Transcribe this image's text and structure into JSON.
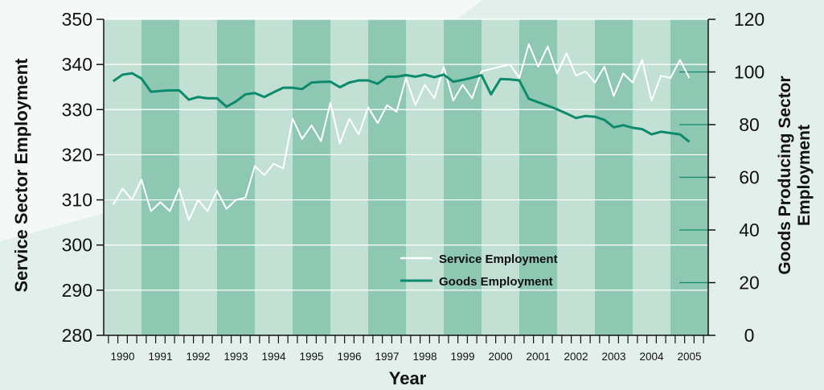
{
  "chart_data": {
    "type": "line",
    "title": "",
    "xlabel": "Year",
    "ylabel_left": "Service Sector Employment",
    "ylabel_right": "Goods Producing Sector Employment",
    "ylim_left": [
      280,
      350
    ],
    "ylim_right": [
      0,
      120
    ],
    "yticks_left": [
      280,
      290,
      300,
      310,
      320,
      330,
      340,
      350
    ],
    "yticks_right": [
      0,
      20,
      40,
      60,
      80,
      100,
      120
    ],
    "xlim": [
      1989.75,
      2005.75
    ],
    "x_tick_labels": [
      "1990",
      "1991",
      "1992",
      "1993",
      "1994",
      "1995",
      "1996",
      "1997",
      "1998",
      "1999",
      "2000",
      "2001",
      "2002",
      "2003",
      "2004",
      "2005"
    ],
    "grid": true,
    "legend_position": "center-right",
    "band_colors": {
      "light": "#c2e0d3",
      "dark": "#8ec8b2"
    },
    "series": [
      {
        "name": "Service Employment",
        "axis": "left",
        "color": "#ffffff",
        "x": [
          1990.0,
          1990.25,
          1990.5,
          1990.75,
          1991.0,
          1991.25,
          1991.5,
          1991.75,
          1992.0,
          1992.25,
          1992.5,
          1992.75,
          1993.0,
          1993.25,
          1993.5,
          1993.75,
          1994.0,
          1994.25,
          1994.5,
          1994.75,
          1995.0,
          1995.25,
          1995.5,
          1995.75,
          1996.0,
          1996.25,
          1996.5,
          1996.75,
          1997.0,
          1997.25,
          1997.5,
          1997.75,
          1998.0,
          1998.25,
          1998.5,
          1998.75,
          1999.0,
          1999.25,
          1999.5,
          1999.75,
          2000.0,
          2000.25,
          2000.5,
          2000.75,
          2001.0,
          2001.25,
          2001.5,
          2001.75,
          2002.0,
          2002.25,
          2002.5,
          2002.75,
          2003.0,
          2003.25,
          2003.5,
          2003.75,
          2004.0,
          2004.25,
          2004.5,
          2004.75,
          2005.0,
          2005.25
        ],
        "values": [
          309,
          312.5,
          310,
          314.5,
          307.5,
          309.5,
          307.5,
          312.5,
          305.5,
          310,
          307.5,
          312,
          308,
          310,
          310.5,
          317.5,
          315.5,
          318,
          317,
          328,
          323.5,
          326.5,
          323,
          331.5,
          322.5,
          328,
          324.5,
          330.5,
          327,
          331,
          329.5,
          337,
          331,
          335.5,
          332.5,
          339.5,
          332,
          335.5,
          332.5,
          338.5,
          339,
          339.5,
          340,
          337,
          344.5,
          339.5,
          344,
          338,
          342.5,
          337.5,
          338.5,
          336,
          339.5,
          333,
          338,
          336,
          341,
          332,
          337.5,
          337,
          341,
          337
        ]
      },
      {
        "name": "Goods Employment",
        "axis": "right",
        "color": "#0c8a6c",
        "x": [
          1990.0,
          1990.25,
          1990.5,
          1990.75,
          1991.0,
          1991.25,
          1991.5,
          1991.75,
          1992.0,
          1992.25,
          1992.5,
          1992.75,
          1993.0,
          1993.25,
          1993.5,
          1993.75,
          1994.0,
          1994.25,
          1994.5,
          1994.75,
          1995.0,
          1995.25,
          1995.5,
          1995.75,
          1996.0,
          1996.25,
          1996.5,
          1996.75,
          1997.0,
          1997.25,
          1997.5,
          1997.75,
          1998.0,
          1998.25,
          1998.5,
          1998.75,
          1999.0,
          1999.25,
          1999.5,
          1999.75,
          2000.0,
          2000.25,
          2000.5,
          2000.75,
          2001.0,
          2001.25,
          2001.5,
          2001.75,
          2002.0,
          2002.25,
          2002.5,
          2002.75,
          2003.0,
          2003.25,
          2003.5,
          2003.75,
          2004.0,
          2004.25,
          2004.5,
          2004.75,
          2005.0,
          2005.25
        ],
        "values": [
          96.5,
          99,
          99.5,
          97.5,
          92.5,
          92.8,
          93,
          93,
          89.5,
          90.5,
          90,
          90,
          86.8,
          88.8,
          91.5,
          92,
          90.5,
          92.3,
          94,
          94,
          93.5,
          96,
          96.2,
          96.3,
          94.2,
          96,
          96.8,
          96.8,
          95.5,
          98.2,
          98.2,
          98.8,
          98.2,
          99,
          98,
          99,
          96.3,
          97,
          97.8,
          98.8,
          91.5,
          97.3,
          97.2,
          96.8,
          89.8,
          88.5,
          87.2,
          85.8,
          84.2,
          82.5,
          83.3,
          83,
          81.8,
          79,
          79.8,
          78.8,
          78.3,
          76.3,
          77.3,
          76.8,
          76.3,
          73.5
        ]
      }
    ]
  }
}
